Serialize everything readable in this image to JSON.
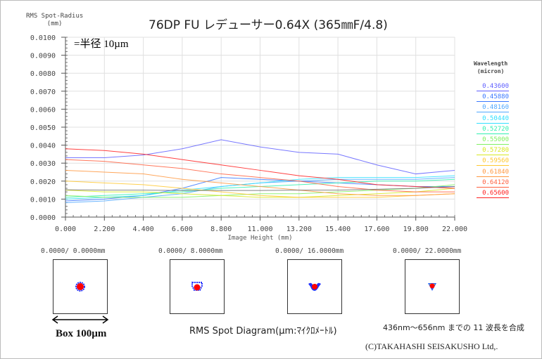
{
  "title": "76DP FU レデューサー0.64X (365㎜F/4.8)",
  "note": "=半径 10µm",
  "chart_data": {
    "type": "line",
    "title": "76DP FU レデューサー0.64X (365㎜F/4.8)",
    "ylabel": "RMS Spot-Radius",
    "ylabel_unit": "(mm)",
    "xlabel": "Image Height  (mm)",
    "xlim": [
      0,
      22
    ],
    "ylim": [
      0,
      0.01
    ],
    "grid": true,
    "legend_position": "right",
    "legend_title": "Wavelength",
    "legend_unit": "(micron)",
    "x": [
      0,
      2.2,
      4.4,
      6.6,
      8.8,
      11,
      13.2,
      15.4,
      17.6,
      19.8,
      22
    ],
    "x_ticks": [
      "0.000",
      "2.200",
      "4.400",
      "6.600",
      "8.800",
      "11.000",
      "13.200",
      "15.400",
      "17.600",
      "19.800",
      "22.000"
    ],
    "y_ticks": [
      "0.0000",
      "0.0010",
      "0.0020",
      "0.0030",
      "0.0040",
      "0.0050",
      "0.0060",
      "0.0070",
      "0.0080",
      "0.0090",
      "0.0100"
    ],
    "series": [
      {
        "name": "0.43600",
        "color": "#6060ff",
        "values": [
          0.0033,
          0.0033,
          0.00345,
          0.0038,
          0.0043,
          0.0039,
          0.0036,
          0.0035,
          0.0029,
          0.0024,
          0.0026
        ]
      },
      {
        "name": "0.45880",
        "color": "#3a78ff",
        "values": [
          0.0009,
          0.001,
          0.0012,
          0.0016,
          0.0022,
          0.0021,
          0.002,
          0.0019,
          0.0018,
          0.0017,
          0.0017
        ]
      },
      {
        "name": "0.48160",
        "color": "#50a8ff",
        "values": [
          0.0008,
          0.0009,
          0.0011,
          0.0013,
          0.0017,
          0.0019,
          0.002,
          0.0021,
          0.0021,
          0.0021,
          0.0022
        ]
      },
      {
        "name": "0.50440",
        "color": "#30e0ff",
        "values": [
          0.001,
          0.0011,
          0.0012,
          0.0015,
          0.0017,
          0.0019,
          0.0021,
          0.0022,
          0.0022,
          0.0022,
          0.0023
        ]
      },
      {
        "name": "0.52720",
        "color": "#30f0b0",
        "values": [
          0.0011,
          0.0012,
          0.0013,
          0.0014,
          0.0016,
          0.0017,
          0.0018,
          0.0019,
          0.002,
          0.002,
          0.0021
        ]
      },
      {
        "name": "0.55000",
        "color": "#80f060",
        "values": [
          0.0012,
          0.0011,
          0.0011,
          0.0011,
          0.0012,
          0.0013,
          0.0013,
          0.0014,
          0.0015,
          0.0016,
          0.0018
        ]
      },
      {
        "name": "0.57280",
        "color": "#d8e820",
        "values": [
          0.0015,
          0.0014,
          0.0014,
          0.0013,
          0.0012,
          0.0011,
          0.0011,
          0.0012,
          0.0013,
          0.0014,
          0.0016
        ]
      },
      {
        "name": "0.59560",
        "color": "#ffc830",
        "values": [
          0.002,
          0.0019,
          0.0018,
          0.0016,
          0.0014,
          0.0012,
          0.0011,
          0.0011,
          0.0011,
          0.0012,
          0.0013
        ]
      },
      {
        "name": "0.61840",
        "color": "#ff9840",
        "values": [
          0.0026,
          0.0025,
          0.0024,
          0.0021,
          0.0019,
          0.0017,
          0.0015,
          0.0013,
          0.0012,
          0.0012,
          0.0013
        ]
      },
      {
        "name": "0.64120",
        "color": "#ff6040",
        "values": [
          0.0032,
          0.0031,
          0.0029,
          0.0027,
          0.0024,
          0.0022,
          0.002,
          0.0017,
          0.0015,
          0.0014,
          0.0014
        ]
      },
      {
        "name": "0.65600",
        "color": "#ff2020",
        "values": [
          0.0038,
          0.0037,
          0.0035,
          0.0032,
          0.0029,
          0.0026,
          0.0023,
          0.0021,
          0.0018,
          0.0017,
          0.0016
        ]
      },
      {
        "color": "#707070",
        "values": [
          0.00152,
          0.0015,
          0.0015,
          0.00148,
          0.00148,
          0.00148,
          0.0015,
          0.0015,
          0.00155,
          0.0016,
          0.0017
        ]
      }
    ]
  },
  "spots": [
    {
      "label": "0.0000/   0.0000mm"
    },
    {
      "label": "0.0000/   8.0000mm"
    },
    {
      "label": "0.0000/  16.0000mm"
    },
    {
      "label": "0.0000/  22.0000mm"
    }
  ],
  "box_label": "Box 100µm",
  "diagram_label": "RMS Spot Diagram(µm:ﾏｲｸﾛﾒｰﾄﾙ)",
  "synthesis_note": "436nm～656nm までの 11 波長を合成",
  "copyright": "(C)TAKAHASHI SEISAKUSHO Ltd,."
}
